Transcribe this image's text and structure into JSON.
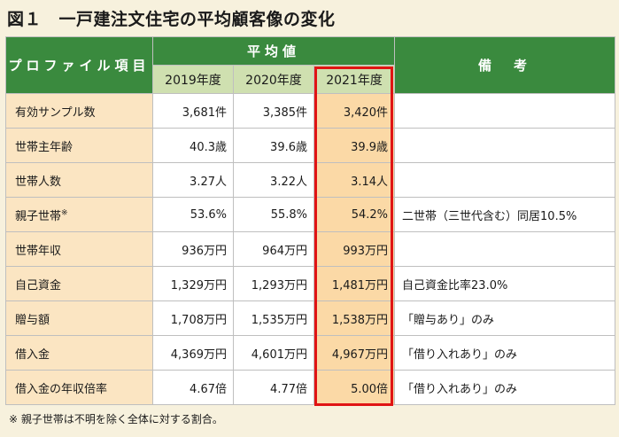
{
  "title": "図１　一戸建注文住宅の平均顧客像の変化",
  "header": {
    "item_label": "プロファイル項目",
    "avg_label": "平均値",
    "remarks_label": "備　考",
    "years": [
      "2019年度",
      "2020年度",
      "2021年度"
    ]
  },
  "rows": [
    {
      "label": "有効サンプル数",
      "v2019": "3,681件",
      "v2020": "3,385件",
      "v2021": "3,420件",
      "remark": ""
    },
    {
      "label": "世帯主年齢",
      "v2019": "40.3歳",
      "v2020": "39.6歳",
      "v2021": "39.9歳",
      "remark": ""
    },
    {
      "label": "世帯人数",
      "v2019": "3.27人",
      "v2020": "3.22人",
      "v2021": "3.14人",
      "remark": ""
    },
    {
      "label": "親子世帯",
      "sup": "※",
      "v2019": "53.6%",
      "v2020": "55.8%",
      "v2021": "54.2%",
      "remark": "二世帯（三世代含む）同居10.5%"
    },
    {
      "label": "世帯年収",
      "v2019": "936万円",
      "v2020": "964万円",
      "v2021": "993万円",
      "remark": ""
    },
    {
      "label": "自己資金",
      "v2019": "1,329万円",
      "v2020": "1,293万円",
      "v2021": "1,481万円",
      "remark": "自己資金比率23.0%"
    },
    {
      "label": "贈与額",
      "v2019": "1,708万円",
      "v2020": "1,535万円",
      "v2021": "1,538万円",
      "remark": "「贈与あり」のみ"
    },
    {
      "label": "借入金",
      "v2019": "4,369万円",
      "v2020": "4,601万円",
      "v2021": "4,967万円",
      "remark": "「借り入れあり」のみ"
    },
    {
      "label": "借入金の年収倍率",
      "v2019": "4.67倍",
      "v2020": "4.77倍",
      "v2021": "5.00倍",
      "remark": "「借り入れあり」のみ"
    }
  ],
  "note": "※ 親子世帯は不明を除く全体に対する割合。",
  "colors": {
    "header_green": "#3a8a3e",
    "year_green": "#cfe0b0",
    "label_bg": "#fbe5c2",
    "highlight_bg": "#fbd9a6",
    "highlight_border": "#e01414"
  }
}
